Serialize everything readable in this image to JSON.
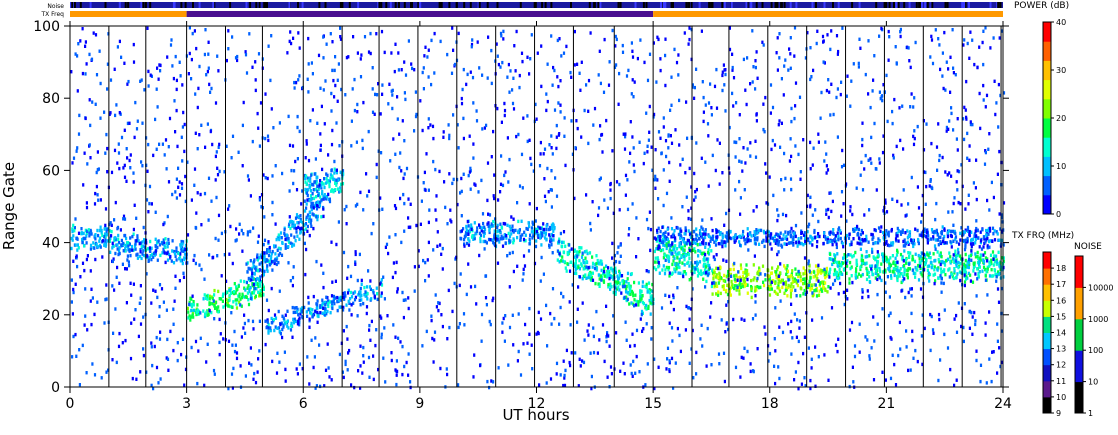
{
  "chart_data": {
    "type": "heatmap",
    "title": "",
    "xlabel": "UT hours",
    "ylabel": "Range Gate",
    "xlim": [
      0,
      24
    ],
    "ylim": [
      0,
      100
    ],
    "x_ticks": [
      "0",
      "3",
      "6",
      "9",
      "12",
      "15",
      "18",
      "21",
      "24"
    ],
    "y_ticks": [
      "0",
      "20",
      "40",
      "60",
      "80",
      "100"
    ],
    "x_tick_values": [
      0,
      3,
      6,
      9,
      12,
      15,
      18,
      21,
      24
    ],
    "y_tick_values": [
      0,
      20,
      40,
      60,
      80,
      100
    ],
    "scan_boundaries_ut": [
      1.0,
      1.95,
      3.0,
      4.0,
      4.95,
      6.0,
      7.0,
      7.95,
      8.95,
      9.95,
      10.95,
      11.95,
      12.95,
      14.0,
      15.0,
      16.0,
      16.95,
      17.95,
      18.95,
      19.95,
      20.95,
      21.95,
      22.95,
      23.95
    ],
    "top_strips": {
      "noise_label": "Noise",
      "txfreq_label": "TX Freq",
      "tx_segments": [
        {
          "from": 0,
          "to": 3,
          "color": "#ff9900"
        },
        {
          "from": 3,
          "to": 15,
          "color": "#4a1090"
        },
        {
          "from": 15,
          "to": 24,
          "color": "#ff9900"
        }
      ]
    },
    "power_colorbar": {
      "title": "POWER (dB)",
      "range": [
        0,
        40
      ],
      "ticks": [
        "0",
        "10",
        "20",
        "30",
        "40"
      ],
      "tick_values": [
        0,
        10,
        20,
        30,
        40
      ],
      "colors": [
        "#0000ff",
        "#0060ff",
        "#00c0ff",
        "#00ffd0",
        "#00ff40",
        "#80ff00",
        "#e0ff00",
        "#ffc000",
        "#ff6000",
        "#ff0000"
      ]
    },
    "txfreq_colorbar": {
      "title": "TX FRQ (MHz)",
      "levels": [
        "9",
        "10",
        "11",
        "12",
        "13",
        "14",
        "15",
        "16",
        "17",
        "18"
      ],
      "colors": [
        "#000000",
        "#5a1a8c",
        "#1010c0",
        "#0050ff",
        "#00c8ff",
        "#00e080",
        "#c8ff00",
        "#ffc000",
        "#ff7000",
        "#ff0000"
      ]
    },
    "noise_colorbar": {
      "title": "NOISE",
      "ticks": [
        "1",
        "10",
        "100",
        "1000",
        "10000"
      ],
      "colors": [
        "#000000",
        "#1010e0",
        "#00d040",
        "#ffa000",
        "#ff0000"
      ]
    },
    "echo_bands": [
      {
        "from": 0.0,
        "to": 1.0,
        "center": [
          42,
          42
        ],
        "width": 4,
        "power_db": 10
      },
      {
        "from": 1.0,
        "to": 3.0,
        "center": [
          40,
          38
        ],
        "width": 4,
        "power_db": 8
      },
      {
        "from": 3.0,
        "to": 5.0,
        "center": [
          22,
          28
        ],
        "width": 4,
        "power_db": 16
      },
      {
        "from": 4.5,
        "to": 6.5,
        "center": [
          30,
          52
        ],
        "width": 5,
        "power_db": 8
      },
      {
        "from": 6.0,
        "to": 7.0,
        "center": [
          55,
          57
        ],
        "width": 5,
        "power_db": 10
      },
      {
        "from": 5.0,
        "to": 8.0,
        "center": [
          17,
          28
        ],
        "width": 3,
        "power_db": 8
      },
      {
        "from": 10.0,
        "to": 12.5,
        "center": [
          43,
          43
        ],
        "width": 4,
        "power_db": 8
      },
      {
        "from": 12.5,
        "to": 15.0,
        "center": [
          38,
          24
        ],
        "width": 5,
        "power_db": 14
      },
      {
        "from": 15.0,
        "to": 16.5,
        "center": [
          38,
          34
        ],
        "width": 6,
        "power_db": 14
      },
      {
        "from": 16.5,
        "to": 19.5,
        "center": [
          30,
          30
        ],
        "width": 5,
        "power_db": 22
      },
      {
        "from": 19.5,
        "to": 24.0,
        "center": [
          34,
          34
        ],
        "width": 5,
        "power_db": 14
      },
      {
        "from": 15.0,
        "to": 24.0,
        "center": [
          42,
          42
        ],
        "width": 3,
        "power_db": 6
      }
    ]
  }
}
